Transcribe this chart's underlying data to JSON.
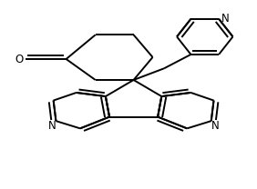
{
  "bg_color": "#ffffff",
  "line_color": "#000000",
  "line_width": 1.4,
  "dbo": 0.018,
  "figsize": [
    2.82,
    2.08
  ],
  "dpi": 100,
  "xlim": [
    0,
    1
  ],
  "ylim": [
    0,
    1
  ]
}
